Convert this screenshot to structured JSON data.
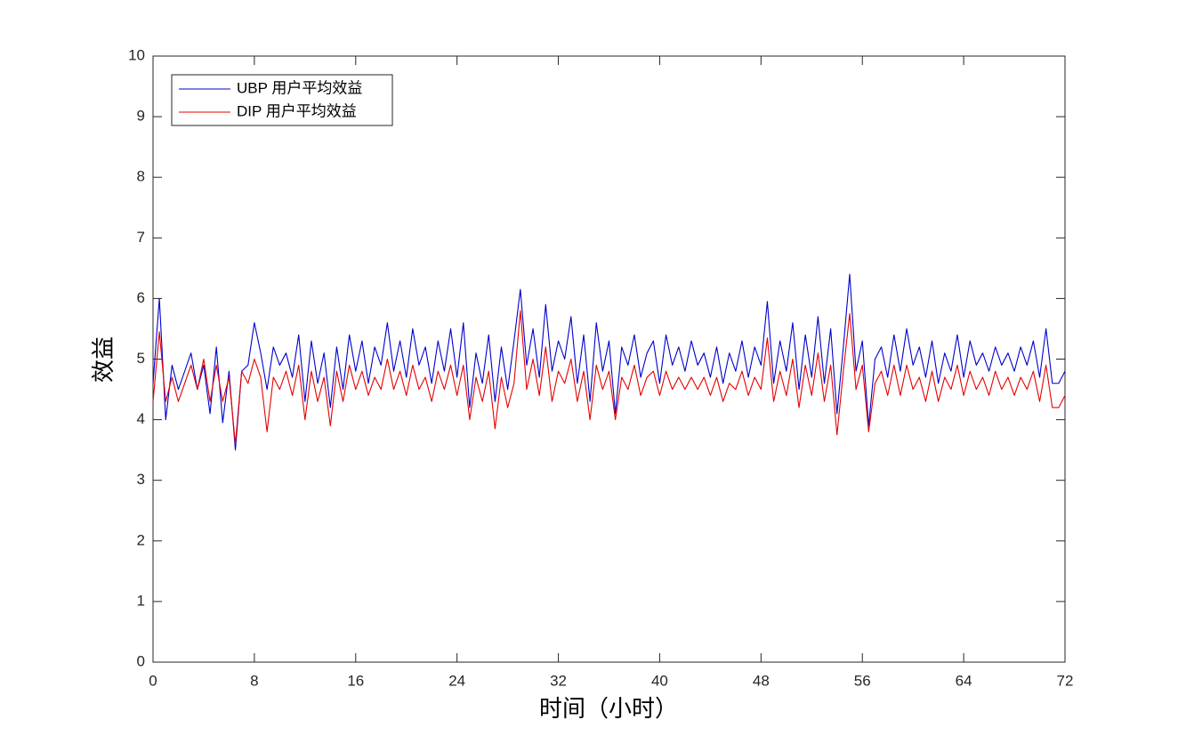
{
  "chart_data": {
    "type": "line",
    "xlabel": "时间（小时）",
    "ylabel": "效益",
    "x": [
      0,
      0.5,
      1,
      1.5,
      2,
      2.5,
      3,
      3.5,
      4,
      4.5,
      5,
      5.5,
      6,
      6.5,
      7,
      7.5,
      8,
      8.5,
      9,
      9.5,
      10,
      10.5,
      11,
      11.5,
      12,
      12.5,
      13,
      13.5,
      14,
      14.5,
      15,
      15.5,
      16,
      16.5,
      17,
      17.5,
      18,
      18.5,
      19,
      19.5,
      20,
      20.5,
      21,
      21.5,
      22,
      22.5,
      23,
      23.5,
      24,
      24.5,
      25,
      25.5,
      26,
      26.5,
      27,
      27.5,
      28,
      28.5,
      29,
      29.5,
      30,
      30.5,
      31,
      31.5,
      32,
      32.5,
      33,
      33.5,
      34,
      34.5,
      35,
      35.5,
      36,
      36.5,
      37,
      37.5,
      38,
      38.5,
      39,
      39.5,
      40,
      40.5,
      41,
      41.5,
      42,
      42.5,
      43,
      43.5,
      44,
      44.5,
      45,
      45.5,
      46,
      46.5,
      47,
      47.5,
      48,
      48.5,
      49,
      49.5,
      50,
      50.5,
      51,
      51.5,
      52,
      52.5,
      53,
      53.5,
      54,
      54.5,
      55,
      55.5,
      56,
      56.5,
      57,
      57.5,
      58,
      58.5,
      59,
      59.5,
      60,
      60.5,
      61,
      61.5,
      62,
      62.5,
      63,
      63.5,
      64,
      64.5,
      65,
      65.5,
      66,
      66.5,
      67,
      67.5,
      68,
      68.5,
      69,
      69.5,
      70,
      70.5,
      71,
      71.5,
      72
    ],
    "series": [
      {
        "name": "UBP 用户平均效益",
        "color": "#0000cc",
        "values": [
          4.6,
          6.0,
          4.0,
          4.9,
          4.5,
          4.8,
          5.1,
          4.5,
          4.9,
          4.1,
          5.2,
          3.95,
          4.8,
          3.5,
          4.8,
          4.9,
          5.6,
          5.1,
          4.5,
          5.2,
          4.9,
          5.1,
          4.7,
          5.4,
          4.3,
          5.3,
          4.6,
          5.1,
          4.2,
          5.2,
          4.5,
          5.4,
          4.8,
          5.3,
          4.6,
          5.2,
          4.9,
          5.6,
          4.8,
          5.3,
          4.7,
          5.5,
          4.9,
          5.2,
          4.6,
          5.3,
          4.8,
          5.5,
          4.7,
          5.6,
          4.2,
          5.1,
          4.6,
          5.4,
          4.3,
          5.2,
          4.5,
          5.3,
          6.15,
          4.9,
          5.5,
          4.7,
          5.9,
          4.8,
          5.3,
          5.0,
          5.7,
          4.6,
          5.4,
          4.3,
          5.6,
          4.8,
          5.3,
          4.1,
          5.2,
          4.9,
          5.4,
          4.7,
          5.1,
          5.3,
          4.6,
          5.4,
          4.9,
          5.2,
          4.8,
          5.3,
          4.9,
          5.1,
          4.7,
          5.2,
          4.6,
          5.1,
          4.8,
          5.3,
          4.7,
          5.2,
          4.9,
          5.95,
          4.6,
          5.3,
          4.8,
          5.6,
          4.5,
          5.4,
          4.7,
          5.7,
          4.6,
          5.5,
          4.1,
          5.2,
          6.4,
          4.8,
          5.3,
          3.9,
          5.0,
          5.2,
          4.7,
          5.4,
          4.8,
          5.5,
          4.9,
          5.2,
          4.7,
          5.3,
          4.6,
          5.1,
          4.8,
          5.4,
          4.7,
          5.3,
          4.9,
          5.1,
          4.8,
          5.2,
          4.9,
          5.1,
          4.8,
          5.2,
          4.9,
          5.3,
          4.7,
          5.5,
          4.6,
          4.6,
          4.8
        ]
      },
      {
        "name": "DIP 用户平均效益",
        "color": "#e60000",
        "values": [
          4.3,
          5.45,
          4.3,
          4.7,
          4.3,
          4.6,
          4.9,
          4.5,
          5.0,
          4.3,
          4.9,
          4.3,
          4.7,
          3.6,
          4.8,
          4.6,
          5.0,
          4.7,
          3.8,
          4.7,
          4.5,
          4.8,
          4.4,
          4.9,
          4.0,
          4.8,
          4.3,
          4.7,
          3.9,
          4.8,
          4.3,
          4.9,
          4.5,
          4.8,
          4.4,
          4.7,
          4.5,
          5.0,
          4.5,
          4.8,
          4.4,
          4.9,
          4.5,
          4.7,
          4.3,
          4.8,
          4.5,
          4.9,
          4.4,
          4.9,
          4.0,
          4.7,
          4.3,
          4.8,
          3.85,
          4.7,
          4.2,
          4.6,
          5.8,
          4.5,
          5.0,
          4.4,
          5.2,
          4.3,
          4.8,
          4.6,
          5.0,
          4.3,
          4.8,
          4.0,
          4.9,
          4.5,
          4.8,
          4.0,
          4.7,
          4.5,
          4.9,
          4.4,
          4.7,
          4.8,
          4.4,
          4.8,
          4.5,
          4.7,
          4.5,
          4.7,
          4.5,
          4.7,
          4.4,
          4.7,
          4.3,
          4.6,
          4.5,
          4.8,
          4.4,
          4.7,
          4.5,
          5.35,
          4.3,
          4.8,
          4.4,
          5.0,
          4.2,
          4.9,
          4.4,
          5.1,
          4.3,
          4.9,
          3.75,
          4.8,
          5.75,
          4.5,
          4.9,
          3.8,
          4.6,
          4.8,
          4.4,
          4.9,
          4.4,
          4.9,
          4.5,
          4.7,
          4.3,
          4.8,
          4.3,
          4.7,
          4.5,
          4.9,
          4.4,
          4.8,
          4.5,
          4.7,
          4.4,
          4.8,
          4.5,
          4.7,
          4.4,
          4.7,
          4.5,
          4.8,
          4.3,
          4.9,
          4.2,
          4.2,
          4.4
        ]
      }
    ],
    "xlim": [
      0,
      72
    ],
    "xticks": [
      0,
      8,
      16,
      24,
      32,
      40,
      48,
      56,
      64,
      72
    ],
    "ylim": [
      0,
      10
    ],
    "yticks": [
      0,
      1,
      2,
      3,
      4,
      5,
      6,
      7,
      8,
      9,
      10
    ],
    "legend": "upper left",
    "grid": false
  }
}
